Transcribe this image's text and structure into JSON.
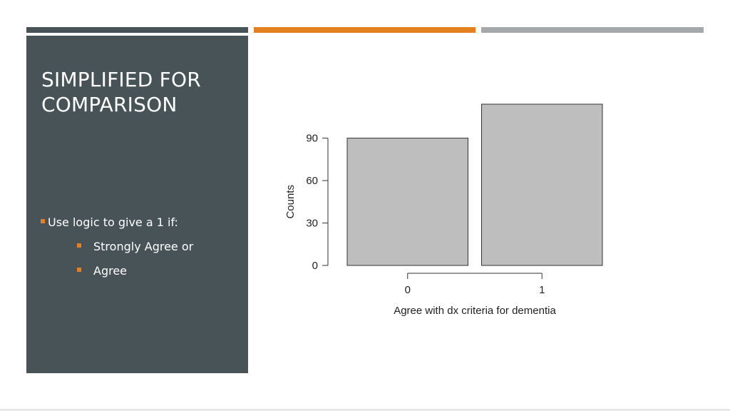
{
  "colors": {
    "panel": "#475357",
    "accent_dark": "#475357",
    "accent_orange": "#e5801f",
    "accent_gray": "#a5a9ac",
    "bullet_marker": "#e5801f",
    "bar_fill": "#bebebe",
    "bar_stroke": "#333333",
    "axis": "#333333"
  },
  "slide": {
    "title": "SIMPLIFIED FOR COMPARISON",
    "bullets": {
      "level1": "Use logic to give a 1 if:",
      "level2": [
        "Strongly Agree or",
        "Agree"
      ]
    }
  },
  "chart_data": {
    "type": "bar",
    "categories": [
      "0",
      "1"
    ],
    "values": [
      90,
      114
    ],
    "xlabel": "Agree with dx criteria for dementia",
    "ylabel": "Counts",
    "yticks": [
      0,
      30,
      60,
      90
    ],
    "ylim": [
      0,
      114
    ],
    "grid": false,
    "legend": "none"
  }
}
